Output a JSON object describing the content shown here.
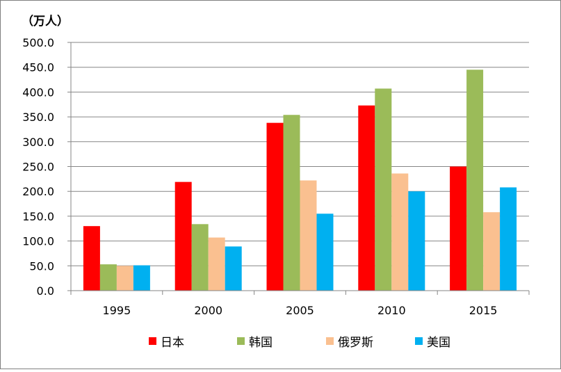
{
  "chart_data": {
    "type": "bar",
    "title": "",
    "xlabel": "",
    "ylabel": "（万人）",
    "ylim": [
      0,
      500
    ],
    "yticks": [
      "0.0",
      "50.0",
      "100.0",
      "150.0",
      "200.0",
      "250.0",
      "300.0",
      "350.0",
      "400.0",
      "450.0",
      "500.0"
    ],
    "grid": true,
    "legend_position": "bottom",
    "categories": [
      "1995",
      "2000",
      "2005",
      "2010",
      "2015"
    ],
    "series": [
      {
        "name": "日本",
        "color": "#ff0000",
        "values": [
          130,
          219,
          338,
          373,
          250
        ]
      },
      {
        "name": "韩国",
        "color": "#9bbb59",
        "values": [
          53,
          134,
          354,
          407,
          445
        ]
      },
      {
        "name": "俄罗斯",
        "color": "#fac090",
        "values": [
          50,
          107,
          222,
          236,
          158
        ]
      },
      {
        "name": "美国",
        "color": "#00b0f0",
        "values": [
          51,
          89,
          155,
          200,
          208
        ]
      }
    ]
  }
}
